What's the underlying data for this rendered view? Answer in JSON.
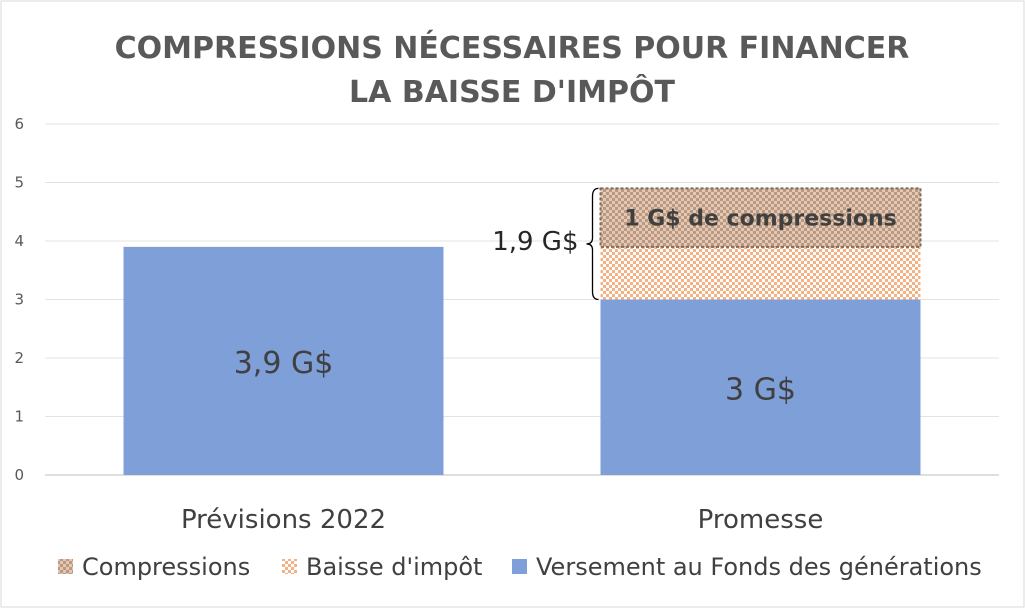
{
  "chart_data": {
    "type": "bar",
    "stacked": true,
    "title_lines": [
      "COMPRESSIONS NÉCESSAIRES POUR FINANCER",
      "LA BAISSE D'IMPÔT"
    ],
    "categories": [
      "Prévisions 2022",
      "Promesse"
    ],
    "ylim": [
      0,
      6
    ],
    "yticks": [
      "0",
      "1",
      "2",
      "3",
      "4",
      "5",
      "6"
    ],
    "grid": true,
    "legend_position": "bottom",
    "series": [
      {
        "name": "Versement au Fonds des générations",
        "values": [
          3.9,
          3.0
        ],
        "color": "#7f9fd8",
        "pattern": "solid"
      },
      {
        "name": "Baisse d'impôt",
        "values": [
          0,
          0.9
        ],
        "color": "#f4b183",
        "pattern": "checker-light"
      },
      {
        "name": "Compressions",
        "values": [
          0,
          1.0
        ],
        "color": "#c9a58a",
        "pattern": "checker-dark"
      }
    ],
    "annotations": {
      "bar_label_1": "3,9 G$",
      "bar_label_2": "3 G$",
      "brace_label": "1,9 G$",
      "compressions_label": "1 G$ de compressions"
    }
  }
}
